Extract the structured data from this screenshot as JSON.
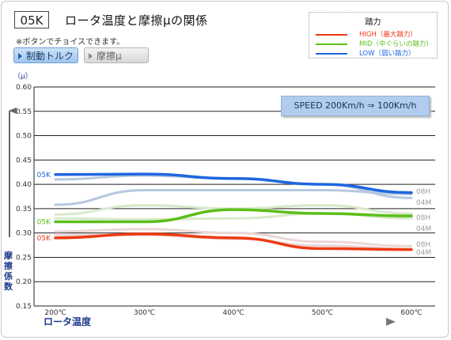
{
  "header": {
    "code": "05K",
    "title": "ロータ温度と摩擦μの関係",
    "note": "※ボタンでチョイスできます。"
  },
  "buttons": {
    "brake_torque": "制動トルク",
    "friction_mu": "摩擦μ"
  },
  "legend": {
    "title": "踏力",
    "items": [
      {
        "label": "HIGH（最大踏力）",
        "color": "#ee3a12"
      },
      {
        "label": "MID（中ぐらいの踏力）",
        "color": "#5cbf1a"
      },
      {
        "label": "LOW（弱い踏力）",
        "color": "#1f66e0"
      }
    ]
  },
  "speed_box": "SPEED  200Km/h ⇒ 100Km/h",
  "colors": {
    "low": "#1f66e0",
    "mid": "#5cbf1a",
    "high": "#ee3a12",
    "ref_blue": "#b6c8de",
    "ref_green": "#d9e9cc",
    "ref_red": "#ecd6d6",
    "grid": "#222222",
    "axis_label": "#1f3b8c"
  },
  "chart_data": {
    "type": "line",
    "x": [
      200,
      300,
      400,
      500,
      600
    ],
    "x_tick_labels": [
      "200℃",
      "300℃",
      "400℃",
      "500℃",
      "600℃"
    ],
    "xlabel": "ロータ温度",
    "ylabel": "摩擦係数",
    "y_unit": "（μ）",
    "ylim": [
      0.15,
      0.6
    ],
    "y_ticks": [
      "0.15",
      "0.20",
      "0.25",
      "0.30",
      "0.35",
      "0.40",
      "0.45",
      "0.50",
      "0.55",
      "0.60"
    ],
    "grid": true,
    "series": [
      {
        "name": "LOW",
        "key": "low",
        "start_label": "05K",
        "values": [
          0.42,
          0.421,
          0.412,
          0.4,
          0.383
        ]
      },
      {
        "name": "MID",
        "key": "mid",
        "start_label": "05K",
        "values": [
          0.323,
          0.323,
          0.348,
          0.34,
          0.335
        ]
      },
      {
        "name": "HIGH",
        "key": "high",
        "start_label": "05K",
        "values": [
          0.29,
          0.298,
          0.29,
          0.268,
          0.266
        ]
      }
    ],
    "reference_series": [
      {
        "key": "ref_blue",
        "end_label": "08H",
        "values": [
          0.358,
          0.388,
          0.388,
          0.388,
          0.38
        ]
      },
      {
        "key": "ref_blue",
        "end_label": "04M",
        "values": [
          0.41,
          0.418,
          0.412,
          0.4,
          0.372
        ]
      },
      {
        "key": "ref_green",
        "end_label": "08H",
        "values": [
          0.338,
          0.357,
          0.35,
          0.357,
          0.34
        ]
      },
      {
        "key": "ref_green",
        "end_label": "04M",
        "values": [
          0.33,
          0.328,
          0.33,
          0.34,
          0.33
        ]
      },
      {
        "key": "ref_red",
        "end_label": "08H",
        "values": [
          0.303,
          0.308,
          0.3,
          0.282,
          0.273
        ]
      },
      {
        "key": "ref_red",
        "end_label": "04M",
        "values": [
          0.296,
          0.296,
          0.288,
          0.274,
          0.267
        ]
      }
    ]
  }
}
